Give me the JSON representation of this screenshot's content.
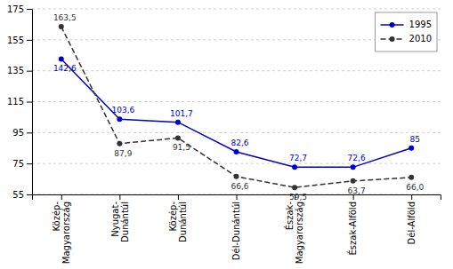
{
  "chart_data": {
    "type": "line",
    "categories": [
      "Közép-\nMagyarország",
      "Nyugat-\nDunántúl",
      "Közép-\nDunántúl",
      "Dél-Dunántúl",
      "Észak-\nMagyarország",
      "Észak-Alföld",
      "Dél-Alföld"
    ],
    "series": [
      {
        "name": "1995",
        "color": "#0000cc",
        "marker": "circle",
        "line_style": "solid",
        "values": [
          142.6,
          103.6,
          101.7,
          82.6,
          72.7,
          72.6,
          85.0
        ],
        "value_labels": [
          "142,6",
          "103,6",
          "101,7",
          "82,6",
          "72,7",
          "72,6",
          "85"
        ]
      },
      {
        "name": "2010",
        "color": "#333333",
        "marker": "circle",
        "line_style": "dashed",
        "values": [
          163.5,
          87.9,
          91.5,
          66.6,
          59.5,
          63.7,
          66.0
        ],
        "value_labels": [
          "163,5",
          "87,9",
          "91,5",
          "66,6",
          "59,5",
          "63,7",
          "66,0"
        ]
      }
    ],
    "ylim": [
      55,
      175
    ],
    "yticks": [
      55,
      75,
      95,
      115,
      135,
      155,
      175
    ],
    "grid": true,
    "legend": "upper right",
    "data_labels": true
  }
}
